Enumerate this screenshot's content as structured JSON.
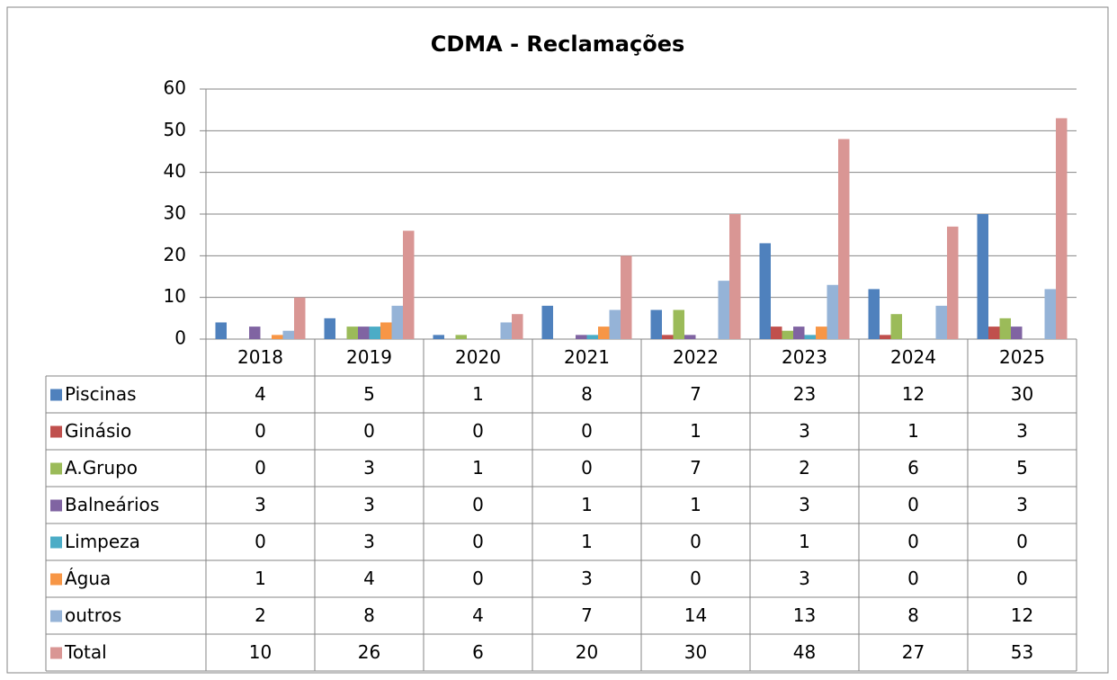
{
  "chart_data": {
    "type": "bar",
    "title": "CDMA - Reclamações",
    "categories": [
      "2018",
      "2019",
      "2020",
      "2021",
      "2022",
      "2023",
      "2024",
      "2025"
    ],
    "series": [
      {
        "name": "Piscinas",
        "color": "#4f81bd",
        "values": [
          4,
          5,
          1,
          8,
          7,
          23,
          12,
          30
        ]
      },
      {
        "name": "Ginásio",
        "color": "#c0504d",
        "values": [
          0,
          0,
          0,
          0,
          1,
          3,
          1,
          3
        ]
      },
      {
        "name": "A.Grupo",
        "color": "#9bbb59",
        "values": [
          0,
          3,
          1,
          0,
          7,
          2,
          6,
          5
        ]
      },
      {
        "name": "Balneários",
        "color": "#8064a2",
        "values": [
          3,
          3,
          0,
          1,
          1,
          3,
          0,
          3
        ]
      },
      {
        "name": "Limpeza",
        "color": "#4bacc6",
        "values": [
          0,
          3,
          0,
          1,
          0,
          1,
          0,
          0
        ]
      },
      {
        "name": "Água",
        "color": "#f79646",
        "values": [
          1,
          4,
          0,
          3,
          0,
          3,
          0,
          0
        ]
      },
      {
        "name": "outros",
        "color": "#95b3d7",
        "values": [
          2,
          8,
          4,
          7,
          14,
          13,
          8,
          12
        ]
      },
      {
        "name": "Total",
        "color": "#d99694",
        "values": [
          10,
          26,
          6,
          20,
          30,
          48,
          27,
          53
        ]
      }
    ],
    "ylim": [
      0,
      60
    ],
    "yticks": [
      0,
      10,
      20,
      30,
      40,
      50,
      60
    ],
    "grid": true
  }
}
